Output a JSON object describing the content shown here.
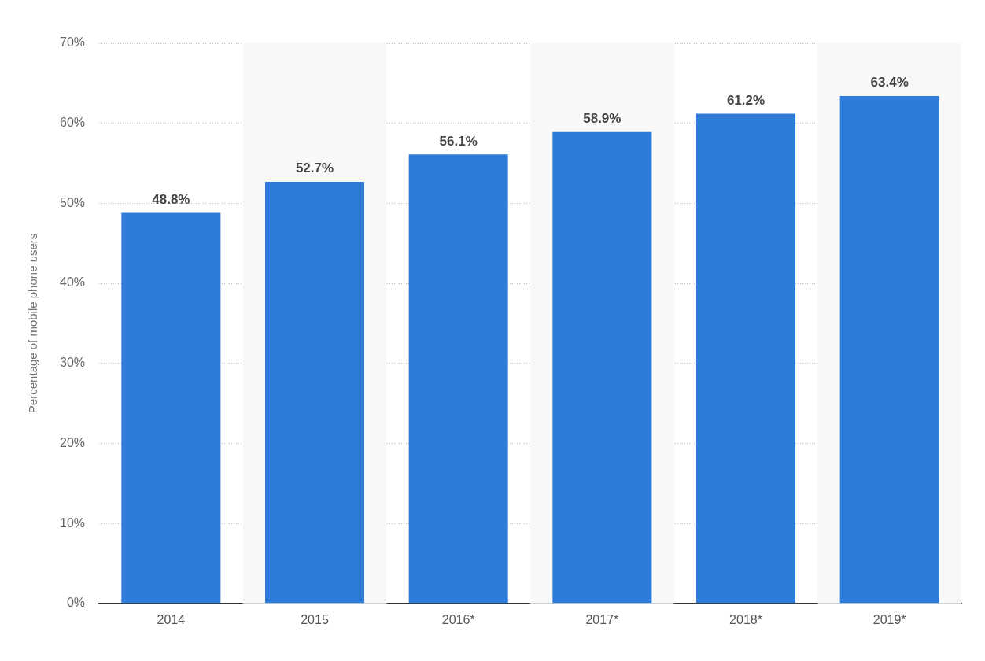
{
  "chart_data": {
    "type": "bar",
    "y_label": "Percentage of mobile phone users",
    "categories": [
      "2014",
      "2015",
      "2016*",
      "2017*",
      "2018*",
      "2019*"
    ],
    "values": [
      48.8,
      52.7,
      56.1,
      58.9,
      61.2,
      63.4
    ],
    "value_labels": [
      "48.8%",
      "52.7%",
      "56.1%",
      "58.9%",
      "61.2%",
      "63.4%"
    ],
    "data_labels": true,
    "color": "#2f7bd9",
    "ylim": [
      0,
      70
    ],
    "yticks": [
      {
        "value": 0,
        "label": "0%"
      },
      {
        "value": 10,
        "label": "10%"
      },
      {
        "value": 20,
        "label": "20%"
      },
      {
        "value": 30,
        "label": "30%"
      },
      {
        "value": 40,
        "label": "40%"
      },
      {
        "value": 50,
        "label": "50%"
      },
      {
        "value": 60,
        "label": "60%"
      },
      {
        "value": 70,
        "label": "70%"
      }
    ],
    "grid": true
  }
}
